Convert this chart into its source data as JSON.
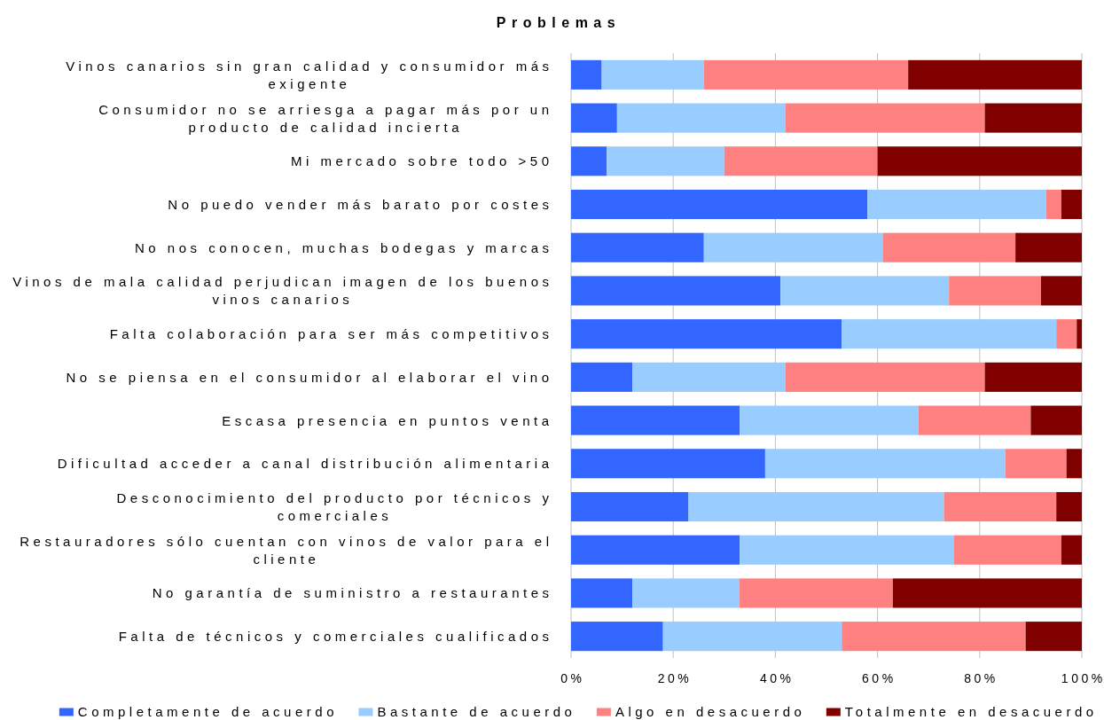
{
  "chart_data": {
    "type": "bar",
    "orientation": "horizontal",
    "stacked": true,
    "title": "Problemas",
    "categories": [
      "Vinos canarios sin gran calidad y consumidor más exigente",
      "Consumidor no se arriesga a pagar más por un producto de calidad incierta",
      "Mi mercado sobre todo >50",
      "No puedo vender más barato por costes",
      "No nos conocen, muchas bodegas y marcas",
      "Vinos de mala calidad perjudican imagen de los buenos vinos canarios",
      "Falta colaboración para ser más competitivos",
      "No se piensa en el consumidor al elaborar el vino",
      "Escasa presencia en puntos venta",
      "Dificultad acceder a canal distribución alimentaria",
      "Desconocimiento del producto por técnicos y comerciales",
      "Restauradores sólo cuentan con vinos de valor para el cliente",
      "No garantía de suministro a restaurantes",
      "Falta de técnicos y comerciales cualificados"
    ],
    "series": [
      {
        "name": "Completamente de acuerdo",
        "color": "#3366ff",
        "values": [
          6,
          9,
          7,
          58,
          26,
          41,
          53,
          12,
          33,
          38,
          23,
          33,
          12,
          18
        ]
      },
      {
        "name": "Bastante de acuerdo",
        "color": "#99ccff",
        "values": [
          20,
          33,
          23,
          35,
          35,
          33,
          42,
          30,
          35,
          47,
          50,
          42,
          21,
          35
        ]
      },
      {
        "name": "Algo en desacuerdo",
        "color": "#ff8080",
        "values": [
          40,
          39,
          30,
          3,
          26,
          18,
          4,
          39,
          22,
          12,
          22,
          21,
          30,
          36
        ]
      },
      {
        "name": "Totalmente en desacuerdo",
        "color": "#800000",
        "values": [
          34,
          19,
          40,
          4,
          13,
          8,
          1,
          19,
          10,
          3,
          5,
          4,
          37,
          11
        ]
      }
    ],
    "xlim": [
      0,
      100
    ],
    "xticks": [
      {
        "value": 0,
        "label": "0%"
      },
      {
        "value": 20,
        "label": "20%"
      },
      {
        "value": 40,
        "label": "40%"
      },
      {
        "value": 60,
        "label": "60%"
      },
      {
        "value": 80,
        "label": "80%"
      },
      {
        "value": 100,
        "label": "100%"
      }
    ],
    "grid": "x",
    "legend": "bottom"
  }
}
